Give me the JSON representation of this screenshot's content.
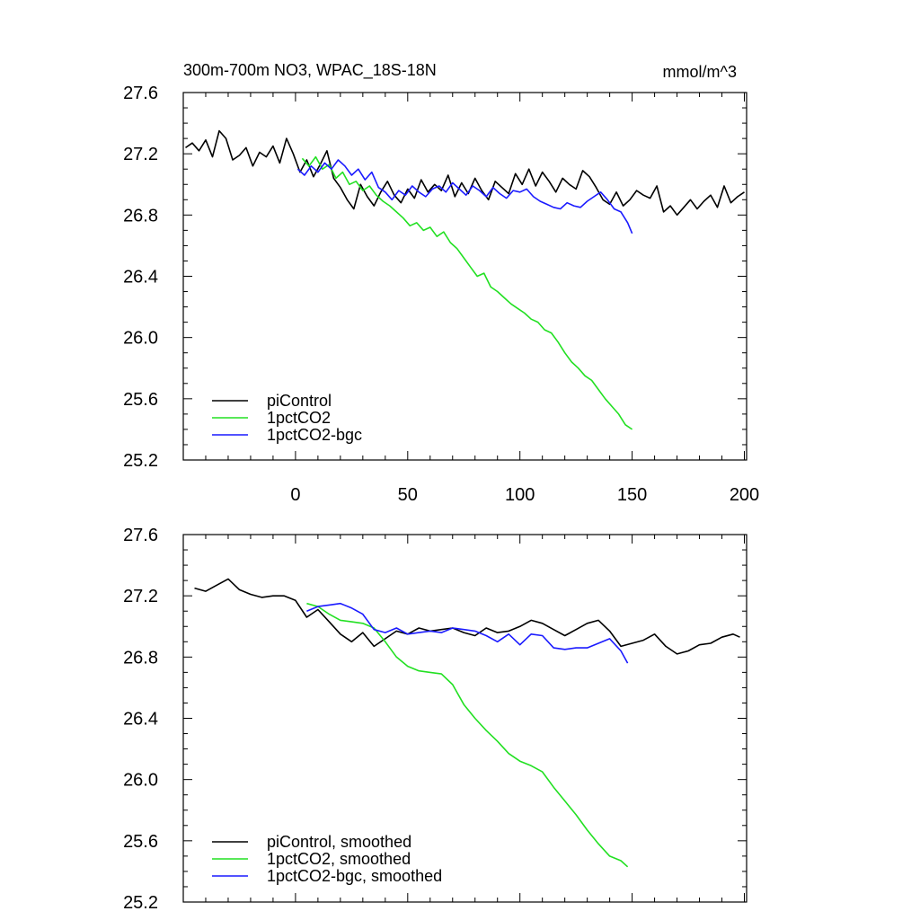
{
  "chart_data": [
    {
      "type": "line",
      "title": "300m-700m NO3, WPAC_18S-18N",
      "units": "mmol/m^3",
      "xlim": [
        -50,
        201
      ],
      "ylim": [
        25.2,
        27.6
      ],
      "xticks": [
        0,
        50,
        100,
        150,
        200
      ],
      "xtick_labels": [
        "0",
        "50",
        "100",
        "150",
        "200"
      ],
      "yticks": [
        25.2,
        25.6,
        26.0,
        26.4,
        26.8,
        27.2,
        27.6
      ],
      "ytick_labels": [
        "25.2",
        "25.6",
        "26.0",
        "26.4",
        "26.8",
        "27.2",
        "27.6"
      ],
      "legend_position": "bottom-left",
      "grid": false,
      "series": [
        {
          "name": "piControl",
          "color": "#000000",
          "x": [
            -49,
            -46,
            -43,
            -40,
            -37,
            -34,
            -31,
            -28,
            -25,
            -22,
            -19,
            -16,
            -13,
            -10,
            -7,
            -4,
            -1,
            2,
            5,
            8,
            11,
            14,
            17,
            20,
            23,
            26,
            29,
            32,
            35,
            38,
            41,
            44,
            47,
            50,
            53,
            56,
            59,
            62,
            65,
            68,
            71,
            74,
            77,
            80,
            83,
            86,
            89,
            92,
            95,
            98,
            101,
            104,
            107,
            110,
            113,
            116,
            119,
            122,
            125,
            128,
            131,
            134,
            137,
            140,
            143,
            146,
            149,
            152,
            155,
            158,
            161,
            164,
            167,
            170,
            173,
            176,
            179,
            182,
            185,
            188,
            191,
            194,
            197,
            200
          ],
          "values": [
            27.24,
            27.27,
            27.22,
            27.29,
            27.18,
            27.35,
            27.3,
            27.16,
            27.19,
            27.24,
            27.12,
            27.21,
            27.18,
            27.25,
            27.14,
            27.3,
            27.2,
            27.08,
            27.16,
            27.05,
            27.13,
            27.22,
            27.04,
            26.98,
            26.9,
            26.84,
            27.0,
            26.92,
            26.86,
            26.95,
            27.02,
            26.93,
            26.88,
            26.97,
            26.91,
            27.03,
            26.95,
            27.0,
            26.96,
            27.06,
            26.92,
            27.01,
            26.94,
            27.04,
            26.96,
            26.9,
            27.02,
            26.98,
            26.94,
            27.07,
            27.0,
            27.1,
            26.99,
            27.08,
            27.02,
            26.95,
            27.04,
            27.0,
            26.97,
            27.09,
            27.05,
            26.98,
            26.9,
            26.87,
            26.95,
            26.86,
            26.9,
            26.96,
            26.93,
            26.91,
            26.99,
            26.82,
            26.86,
            26.8,
            26.85,
            26.9,
            26.84,
            26.89,
            26.93,
            26.85,
            26.99,
            26.88,
            26.92,
            26.95
          ]
        },
        {
          "name": "1pctCO2",
          "color": "#22e022",
          "x": [
            3,
            6,
            9,
            12,
            15,
            18,
            21,
            24,
            27,
            30,
            33,
            36,
            39,
            42,
            45,
            48,
            51,
            54,
            57,
            60,
            63,
            66,
            69,
            72,
            75,
            78,
            81,
            84,
            87,
            90,
            93,
            96,
            99,
            102,
            105,
            108,
            111,
            114,
            117,
            120,
            123,
            126,
            129,
            132,
            135,
            138,
            141,
            144,
            147,
            150
          ],
          "values": [
            27.17,
            27.12,
            27.18,
            27.1,
            27.13,
            27.04,
            27.08,
            27.0,
            27.02,
            26.96,
            26.99,
            26.93,
            26.89,
            26.86,
            26.82,
            26.78,
            26.73,
            26.75,
            26.7,
            26.72,
            26.66,
            26.69,
            26.62,
            26.58,
            26.52,
            26.46,
            26.4,
            26.42,
            26.33,
            26.3,
            26.26,
            26.22,
            26.19,
            26.16,
            26.12,
            26.1,
            26.05,
            26.03,
            25.97,
            25.9,
            25.84,
            25.8,
            25.75,
            25.72,
            25.66,
            25.6,
            25.55,
            25.5,
            25.43,
            25.4
          ]
        },
        {
          "name": "1pctCO2-bgc",
          "color": "#1a1aff",
          "x": [
            1,
            4,
            7,
            10,
            13,
            16,
            19,
            22,
            25,
            28,
            31,
            34,
            37,
            40,
            43,
            46,
            49,
            52,
            55,
            58,
            61,
            64,
            67,
            70,
            73,
            76,
            79,
            82,
            85,
            88,
            91,
            94,
            97,
            100,
            103,
            106,
            109,
            112,
            115,
            118,
            121,
            124,
            127,
            130,
            133,
            136,
            139,
            142,
            145,
            148,
            150
          ],
          "values": [
            27.1,
            27.06,
            27.12,
            27.08,
            27.14,
            27.1,
            27.16,
            27.12,
            27.06,
            27.1,
            27.03,
            27.08,
            26.98,
            26.95,
            26.9,
            26.96,
            26.93,
            26.99,
            26.95,
            26.92,
            26.97,
            26.99,
            26.95,
            27.01,
            26.97,
            26.93,
            26.99,
            26.96,
            26.92,
            26.98,
            26.94,
            26.91,
            26.96,
            26.95,
            26.97,
            26.92,
            26.89,
            26.87,
            26.85,
            26.84,
            26.88,
            26.86,
            26.85,
            26.89,
            26.92,
            26.95,
            26.9,
            26.84,
            26.82,
            26.75,
            26.68
          ]
        }
      ],
      "legend": [
        "piControl",
        "1pctCO2",
        "1pctCO2-bgc"
      ]
    },
    {
      "type": "line",
      "title": "",
      "xlim": [
        -50,
        201
      ],
      "ylim": [
        25.2,
        27.6
      ],
      "xticks": [
        0,
        50,
        100,
        150,
        200
      ],
      "yticks": [
        25.2,
        25.6,
        26.0,
        26.4,
        26.8,
        27.2,
        27.6
      ],
      "ytick_labels": [
        "25.2",
        "25.6",
        "26.0",
        "26.4",
        "26.8",
        "27.2",
        "27.6"
      ],
      "legend_position": "bottom-left",
      "grid": false,
      "series": [
        {
          "name": "piControl, smoothed",
          "color": "#000000",
          "x": [
            -45,
            -40,
            -35,
            -30,
            -25,
            -20,
            -15,
            -10,
            -5,
            0,
            5,
            10,
            15,
            20,
            25,
            30,
            35,
            40,
            45,
            50,
            55,
            60,
            65,
            70,
            75,
            80,
            85,
            90,
            95,
            100,
            105,
            110,
            115,
            120,
            125,
            130,
            135,
            140,
            145,
            150,
            155,
            160,
            165,
            170,
            175,
            180,
            185,
            190,
            195,
            198
          ],
          "values": [
            27.25,
            27.23,
            27.27,
            27.31,
            27.24,
            27.21,
            27.19,
            27.2,
            27.2,
            27.17,
            27.06,
            27.11,
            27.03,
            26.95,
            26.9,
            26.96,
            26.87,
            26.92,
            26.97,
            26.95,
            26.99,
            26.97,
            26.98,
            26.99,
            26.96,
            26.94,
            26.99,
            26.96,
            26.97,
            27.0,
            27.04,
            27.02,
            26.98,
            26.94,
            26.98,
            27.02,
            27.04,
            26.97,
            26.87,
            26.89,
            26.91,
            26.95,
            26.87,
            26.82,
            26.84,
            26.88,
            26.89,
            26.93,
            26.95,
            26.93
          ]
        },
        {
          "name": "1pctCO2, smoothed",
          "color": "#22e022",
          "x": [
            5,
            10,
            15,
            20,
            25,
            30,
            35,
            40,
            45,
            50,
            55,
            60,
            65,
            70,
            75,
            80,
            85,
            90,
            95,
            100,
            105,
            110,
            115,
            120,
            125,
            130,
            135,
            140,
            145,
            148
          ],
          "values": [
            27.15,
            27.13,
            27.08,
            27.04,
            27.03,
            27.02,
            26.99,
            26.9,
            26.8,
            26.74,
            26.71,
            26.7,
            26.69,
            26.62,
            26.49,
            26.4,
            26.32,
            26.25,
            26.17,
            26.12,
            26.09,
            26.05,
            25.95,
            25.86,
            25.77,
            25.67,
            25.58,
            25.5,
            25.47,
            25.43
          ]
        },
        {
          "name": "1pctCO2-bgc, smoothed",
          "color": "#1a1aff",
          "x": [
            5,
            10,
            15,
            20,
            25,
            30,
            35,
            40,
            45,
            50,
            55,
            60,
            65,
            70,
            75,
            80,
            85,
            90,
            95,
            100,
            105,
            110,
            115,
            120,
            125,
            130,
            135,
            140,
            145,
            148
          ],
          "values": [
            27.1,
            27.13,
            27.14,
            27.15,
            27.12,
            27.08,
            26.98,
            26.96,
            26.99,
            26.95,
            26.96,
            26.97,
            26.96,
            26.99,
            26.98,
            26.97,
            26.94,
            26.9,
            26.95,
            26.88,
            26.95,
            26.94,
            26.86,
            26.85,
            26.86,
            26.86,
            26.89,
            26.92,
            26.84,
            26.76
          ]
        }
      ],
      "legend": [
        "piControl, smoothed",
        "1pctCO2, smoothed",
        "1pctCO2-bgc, smoothed"
      ]
    }
  ]
}
